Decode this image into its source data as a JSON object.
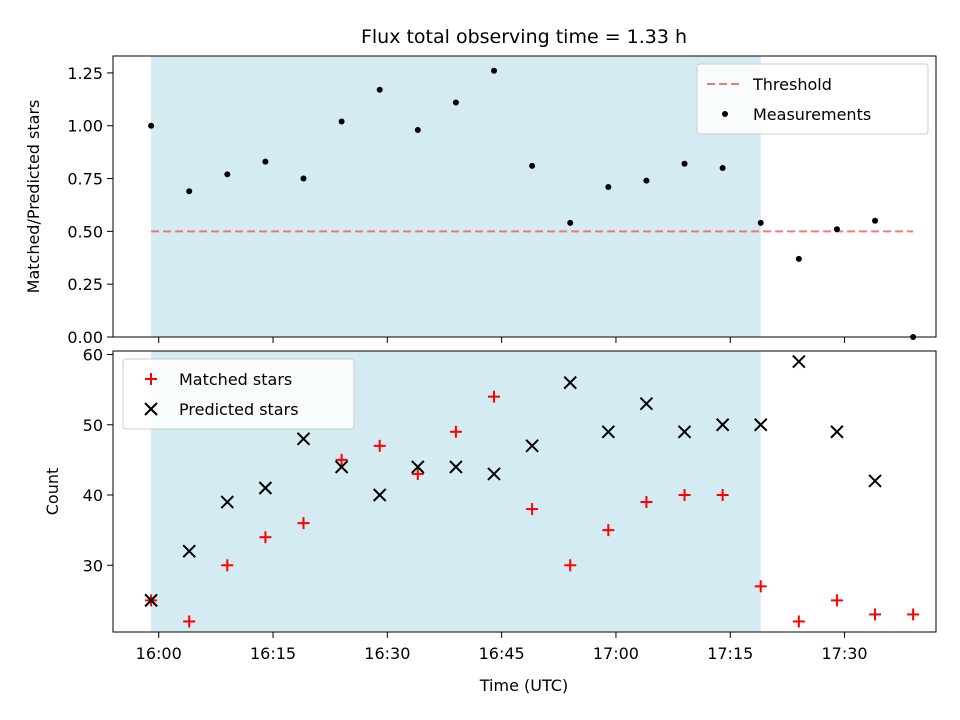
{
  "chart_data": {
    "title": "Flux total observing time = 1.33 h",
    "xlabel": "Time (UTC)",
    "x_ticks": [
      "16:00",
      "16:15",
      "16:30",
      "16:45",
      "17:00",
      "17:15",
      "17:30"
    ],
    "observing_window": [
      "15:59",
      "17:19"
    ],
    "shade_color": "#d4ebf1",
    "panels": [
      {
        "type": "scatter",
        "ylabel": "Matched/Predicted stars",
        "ylim": [
          0,
          1.33
        ],
        "y_ticks": [
          "0.00",
          "0.25",
          "0.50",
          "0.75",
          "1.00",
          "1.25"
        ],
        "legend_position": "upper-right",
        "threshold": {
          "name": "Threshold",
          "value": 0.5,
          "x_range": [
            "15:59",
            "17:39"
          ],
          "color": "#f07878"
        },
        "series": [
          {
            "name": "Measurements",
            "color": "#000000",
            "marker": "dot",
            "x": [
              "15:59",
              "16:04",
              "16:09",
              "16:14",
              "16:19",
              "16:24",
              "16:29",
              "16:34",
              "16:39",
              "16:44",
              "16:49",
              "16:54",
              "16:59",
              "17:04",
              "17:09",
              "17:14",
              "17:19",
              "17:24",
              "17:29",
              "17:34",
              "17:39"
            ],
            "y": [
              1.0,
              0.69,
              0.77,
              0.83,
              0.75,
              1.02,
              1.17,
              0.98,
              1.11,
              1.26,
              0.81,
              0.54,
              0.71,
              0.74,
              0.82,
              0.8,
              0.54,
              0.37,
              0.51,
              0.55,
              0.0
            ]
          }
        ]
      },
      {
        "type": "scatter",
        "ylabel": "Count",
        "ylim": [
          20.5,
          60.5
        ],
        "y_ticks": [
          "30",
          "40",
          "50",
          "60"
        ],
        "legend_position": "upper-left",
        "series": [
          {
            "name": "Matched stars",
            "color": "#ff0000",
            "marker": "plus",
            "x": [
              "15:59",
              "16:04",
              "16:09",
              "16:14",
              "16:19",
              "16:24",
              "16:29",
              "16:34",
              "16:39",
              "16:44",
              "16:49",
              "16:54",
              "16:59",
              "17:04",
              "17:09",
              "17:14",
              "17:19",
              "17:24",
              "17:29",
              "17:34",
              "17:39"
            ],
            "y": [
              25,
              22,
              30,
              34,
              36,
              45,
              47,
              43,
              49,
              54,
              38,
              30,
              35,
              39,
              40,
              40,
              27,
              22,
              25,
              23,
              23
            ]
          },
          {
            "name": "Predicted stars",
            "color": "#000000",
            "marker": "x",
            "x": [
              "15:59",
              "16:04",
              "16:09",
              "16:14",
              "16:19",
              "16:24",
              "16:29",
              "16:34",
              "16:39",
              "16:44",
              "16:49",
              "16:54",
              "16:59",
              "17:04",
              "17:09",
              "17:14",
              "17:19",
              "17:24",
              "17:29",
              "17:34"
            ],
            "y": [
              25,
              32,
              39,
              41,
              48,
              44,
              40,
              44,
              44,
              43,
              47,
              56,
              49,
              53,
              49,
              50,
              50,
              59,
              49,
              42
            ]
          }
        ]
      }
    ]
  }
}
